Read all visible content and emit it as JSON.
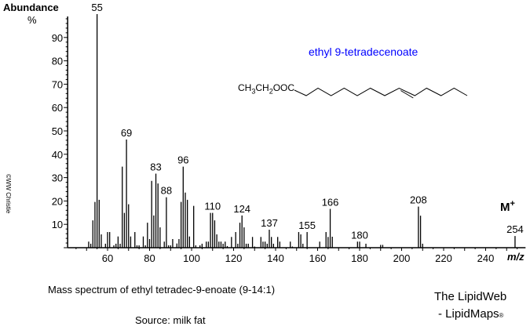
{
  "chart_data": {
    "type": "bar",
    "title": "Mass spectrum of ethyl tetradec-9-enoate (9-14:1)",
    "subtitle": "Source:  milk fat",
    "ylabel": "Abundance",
    "ylabel_unit": "%",
    "xlabel": "m/z",
    "xlim": [
      41,
      259
    ],
    "ylim": [
      0,
      100
    ],
    "xticks": [
      60,
      80,
      100,
      120,
      140,
      160,
      180,
      200,
      220,
      240
    ],
    "yticks": [
      10,
      20,
      30,
      40,
      50,
      60,
      70,
      80,
      90
    ],
    "grid": false,
    "bar_color": "#000000",
    "peaks": [
      [
        51,
        2.6
      ],
      [
        52,
        1.7
      ],
      [
        53,
        11.7
      ],
      [
        54,
        19.6
      ],
      [
        55,
        100
      ],
      [
        56,
        20.5
      ],
      [
        57,
        5.7
      ],
      [
        59,
        1.7
      ],
      [
        60,
        6.7
      ],
      [
        61,
        6.7
      ],
      [
        63,
        1
      ],
      [
        64,
        1.7
      ],
      [
        65,
        4.8
      ],
      [
        66,
        1.7
      ],
      [
        67,
        34.7
      ],
      [
        68,
        14.9
      ],
      [
        69,
        46.3
      ],
      [
        70,
        18.6
      ],
      [
        71,
        4.8
      ],
      [
        73,
        6.7
      ],
      [
        74,
        1
      ],
      [
        75,
        1
      ],
      [
        77,
        4.8
      ],
      [
        78,
        1
      ],
      [
        79,
        10.7
      ],
      [
        80,
        3.7
      ],
      [
        81,
        28.6
      ],
      [
        82,
        13.8
      ],
      [
        83,
        31.7
      ],
      [
        84,
        27.5
      ],
      [
        85,
        8.7
      ],
      [
        87,
        2.6
      ],
      [
        88,
        21.6
      ],
      [
        89,
        1
      ],
      [
        90,
        1
      ],
      [
        91,
        3.7
      ],
      [
        93,
        1.8
      ],
      [
        94,
        3.7
      ],
      [
        95,
        19.6
      ],
      [
        96,
        34.7
      ],
      [
        97,
        23.6
      ],
      [
        98,
        20.5
      ],
      [
        99,
        4.8
      ],
      [
        101,
        17.9
      ],
      [
        102,
        1
      ],
      [
        104,
        1
      ],
      [
        105,
        1.7
      ],
      [
        107,
        2.6
      ],
      [
        108,
        2.6
      ],
      [
        109,
        14.9
      ],
      [
        110,
        14.9
      ],
      [
        111,
        11.7
      ],
      [
        112,
        5.7
      ],
      [
        113,
        2.6
      ],
      [
        114,
        2.6
      ],
      [
        115,
        1.7
      ],
      [
        116,
        2.6
      ],
      [
        117,
        0.7
      ],
      [
        119,
        4.6
      ],
      [
        121,
        6.7
      ],
      [
        122,
        1.7
      ],
      [
        123,
        10.7
      ],
      [
        124,
        13.8
      ],
      [
        125,
        8.7
      ],
      [
        126,
        1.7
      ],
      [
        127,
        1.7
      ],
      [
        129,
        4.6
      ],
      [
        130,
        0.5
      ],
      [
        133,
        4.6
      ],
      [
        134,
        2.6
      ],
      [
        135,
        2.6
      ],
      [
        136,
        1.7
      ],
      [
        137,
        7.7
      ],
      [
        138,
        4.6
      ],
      [
        139,
        1.7
      ],
      [
        141,
        4.6
      ],
      [
        142,
        2.6
      ],
      [
        147,
        2.6
      ],
      [
        148,
        0.5
      ],
      [
        151,
        6.7
      ],
      [
        152,
        5.7
      ],
      [
        153,
        1.7
      ],
      [
        155,
        6.7
      ],
      [
        161,
        2.6
      ],
      [
        164,
        6.7
      ],
      [
        165,
        4.6
      ],
      [
        166,
        16.6
      ],
      [
        167,
        4.7
      ],
      [
        179,
        2.6
      ],
      [
        180,
        2.6
      ],
      [
        183,
        1.7
      ],
      [
        190,
        1.2
      ],
      [
        191,
        1.2
      ],
      [
        208,
        17.6
      ],
      [
        209,
        13.7
      ],
      [
        210,
        1.7
      ],
      [
        254,
        5.0
      ]
    ],
    "peak_labels": [
      "55",
      "69",
      "83",
      "88",
      "96",
      "110",
      "124",
      "137",
      "155",
      "166",
      "180",
      "208",
      "254"
    ],
    "annotation": "M+",
    "compound_name": "ethyl 9-tetradecenoate",
    "compound_name_color": "#0000ff",
    "structure_prefix": "CH3CH2OOC"
  },
  "credits": {
    "copyright": "©WW Christie",
    "site_line1": "The LipidWeb",
    "site_line2": "- LipidMaps",
    "registered": "®"
  }
}
